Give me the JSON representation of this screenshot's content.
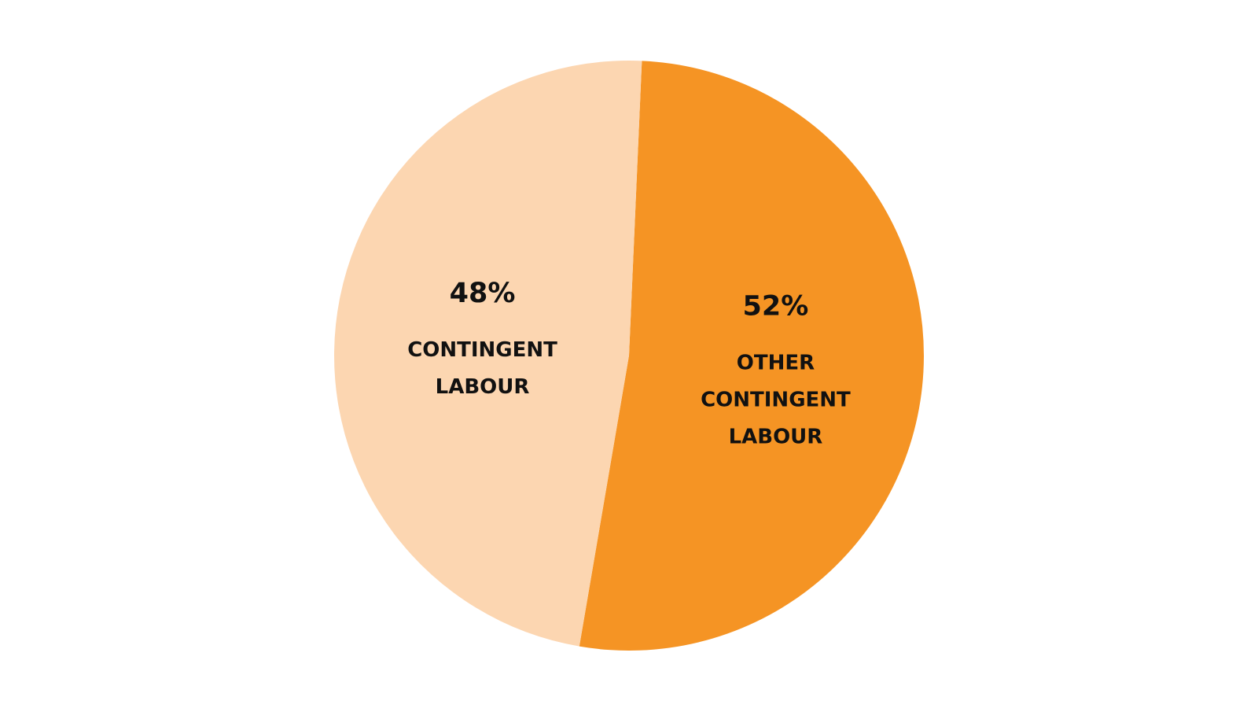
{
  "chart_data": {
    "type": "pie",
    "slices": [
      {
        "value": 52,
        "value_label": "52%",
        "label_lines": [
          "OTHER",
          "CONTINGENT",
          "LABOUR"
        ],
        "color": "#F59424"
      },
      {
        "value": 48,
        "value_label": "48%",
        "label_lines": [
          "CONTINGENT",
          "LABOUR"
        ],
        "color": "#FCD6B1"
      }
    ],
    "start_angle_deg": 2.5,
    "direction": "clockwise",
    "legend": "none",
    "title": ""
  }
}
